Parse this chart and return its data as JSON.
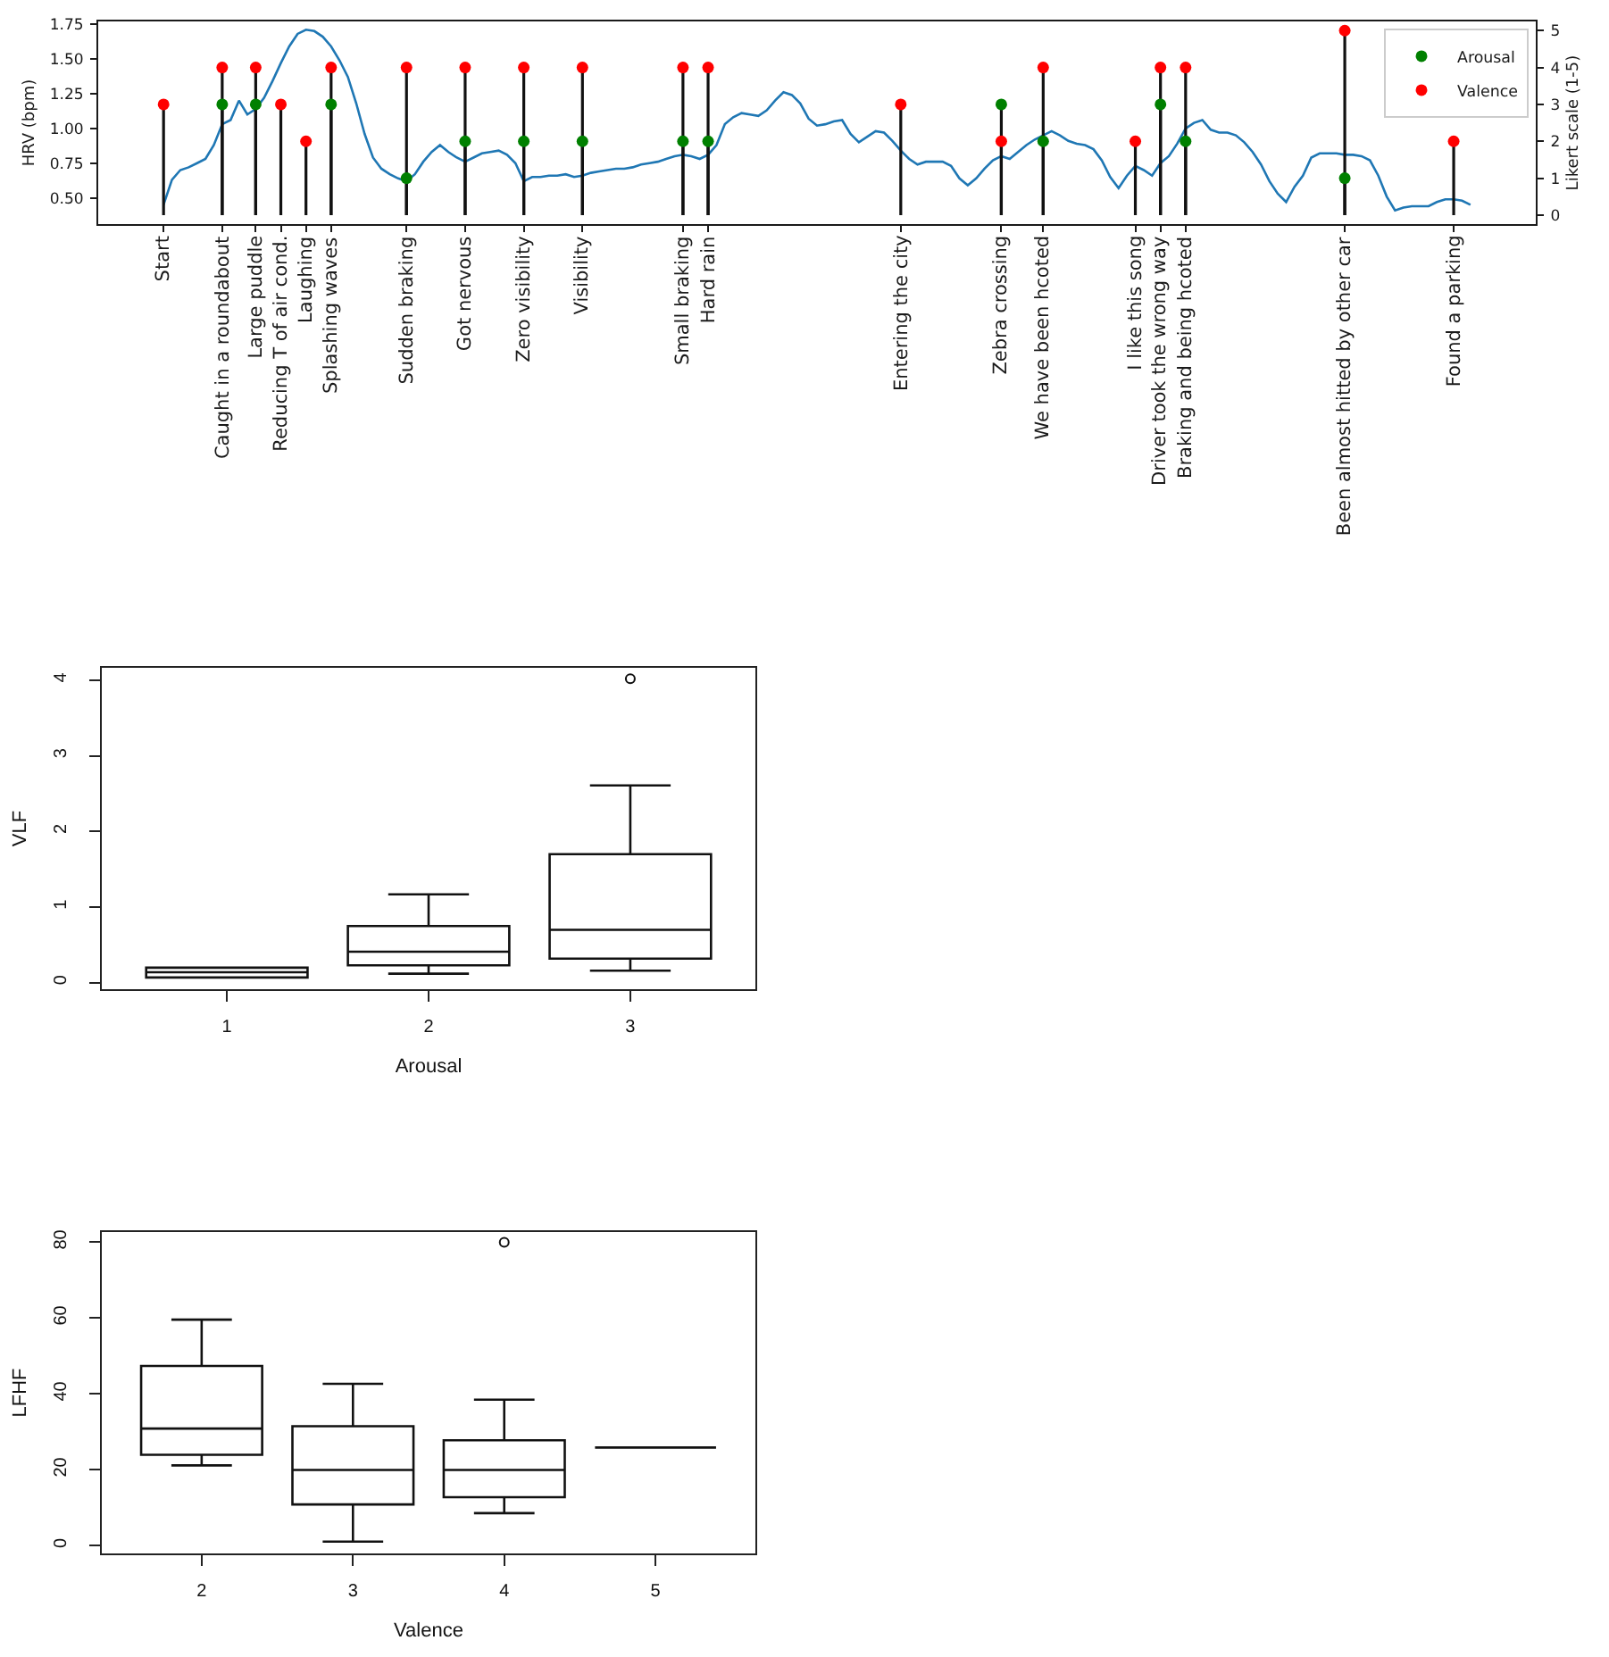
{
  "chart_data": [
    {
      "type": "line",
      "categories": [
        "Start",
        null,
        null,
        null,
        null,
        null,
        null,
        "Caught in a roundabout",
        null,
        null,
        null,
        "Large puddle",
        null,
        null,
        "Reducing T of air cond.",
        null,
        null,
        "Laughing",
        null,
        null,
        "Splashing waves",
        null,
        null,
        null,
        null,
        null,
        null,
        null,
        null,
        "Sudden braking",
        null,
        null,
        null,
        null,
        null,
        null,
        "Got nervous",
        null,
        null,
        null,
        null,
        null,
        null,
        "Zero visibility",
        null,
        null,
        null,
        null,
        null,
        null,
        "Visibility",
        null,
        null,
        null,
        null,
        null,
        null,
        null,
        null,
        null,
        null,
        null,
        "Small braking",
        null,
        null,
        "Hard rain",
        null,
        null,
        null,
        null,
        null,
        null,
        null,
        null,
        null,
        null,
        null,
        null,
        null,
        null,
        null,
        null,
        null,
        null,
        null,
        null,
        null,
        null,
        "Entering the city",
        null,
        null,
        null,
        null,
        null,
        null,
        null,
        null,
        null,
        null,
        null,
        "Zebra crossing",
        null,
        null,
        null,
        null,
        "We have been hcoted",
        null,
        null,
        null,
        null,
        null,
        null,
        null,
        null,
        null,
        null,
        "I like this song",
        null,
        null,
        "Driver took the wrong way",
        null,
        null,
        "Braking and being hcoted",
        null,
        null,
        null,
        null,
        null,
        null,
        null,
        null,
        null,
        null,
        null,
        null,
        null,
        null,
        null,
        null,
        null,
        null,
        "Been almost hitted by other car",
        null,
        null,
        null,
        null,
        null,
        null,
        null,
        null,
        null,
        null,
        null,
        null,
        "Found a parking",
        null,
        null
      ],
      "series": [
        {
          "type": "line",
          "color": "#1f77b4",
          "values": [
            0.45,
            0.63,
            0.7,
            0.72,
            0.75,
            0.78,
            0.88,
            1.03,
            1.06,
            1.2,
            1.1,
            1.14,
            1.22,
            1.34,
            1.47,
            1.59,
            1.68,
            1.71,
            1.7,
            1.66,
            1.59,
            1.49,
            1.37,
            1.18,
            0.96,
            0.79,
            0.71,
            0.67,
            0.64,
            0.62,
            0.67,
            0.76,
            0.83,
            0.88,
            0.83,
            0.79,
            0.76,
            0.79,
            0.82,
            0.83,
            0.84,
            0.81,
            0.75,
            0.62,
            0.65,
            0.65,
            0.66,
            0.66,
            0.67,
            0.65,
            0.66,
            0.68,
            0.69,
            0.7,
            0.71,
            0.71,
            0.72,
            0.74,
            0.75,
            0.76,
            0.78,
            0.8,
            0.81,
            0.8,
            0.78,
            0.81,
            0.88,
            1.03,
            1.08,
            1.11,
            1.1,
            1.09,
            1.13,
            1.2,
            1.26,
            1.24,
            1.18,
            1.07,
            1.02,
            1.03,
            1.05,
            1.06,
            0.96,
            0.9,
            0.94,
            0.98,
            0.97,
            0.91,
            0.84,
            0.78,
            0.74,
            0.76,
            0.76,
            0.76,
            0.73,
            0.64,
            0.59,
            0.64,
            0.71,
            0.77,
            0.8,
            0.78,
            0.83,
            0.88,
            0.92,
            0.95,
            0.98,
            0.95,
            0.91,
            0.89,
            0.88,
            0.85,
            0.77,
            0.65,
            0.57,
            0.66,
            0.73,
            0.7,
            0.66,
            0.75,
            0.8,
            0.89,
            1.0,
            1.04,
            1.06,
            0.99,
            0.97,
            0.97,
            0.95,
            0.9,
            0.83,
            0.74,
            0.62,
            0.53,
            0.47,
            0.58,
            0.66,
            0.79,
            0.82,
            0.82,
            0.82,
            0.81,
            0.81,
            0.8,
            0.77,
            0.66,
            0.51,
            0.41,
            0.43,
            0.44,
            0.44,
            0.44,
            0.47,
            0.49,
            0.49,
            0.48,
            0.45
          ]
        },
        {
          "name": "Arousal",
          "type": "lollipop",
          "axis": "y2",
          "color": "#008000",
          "values": [
            null,
            null,
            null,
            null,
            null,
            null,
            null,
            3,
            null,
            null,
            null,
            3,
            null,
            null,
            null,
            null,
            null,
            null,
            null,
            null,
            3,
            null,
            null,
            null,
            null,
            null,
            null,
            null,
            null,
            1,
            null,
            null,
            null,
            null,
            null,
            null,
            2,
            null,
            null,
            null,
            null,
            null,
            null,
            2,
            null,
            null,
            null,
            null,
            null,
            null,
            2,
            null,
            null,
            null,
            null,
            null,
            null,
            null,
            null,
            null,
            null,
            null,
            2,
            null,
            null,
            2,
            null,
            null,
            null,
            null,
            null,
            null,
            null,
            null,
            null,
            null,
            null,
            null,
            null,
            null,
            null,
            null,
            null,
            null,
            null,
            null,
            null,
            null,
            null,
            null,
            null,
            null,
            null,
            null,
            null,
            null,
            null,
            null,
            null,
            null,
            3,
            null,
            null,
            null,
            null,
            2,
            null,
            null,
            null,
            null,
            null,
            null,
            null,
            null,
            null,
            null,
            null,
            null,
            null,
            3,
            null,
            null,
            2,
            null,
            null,
            null,
            null,
            null,
            null,
            null,
            null,
            null,
            null,
            null,
            null,
            null,
            null,
            null,
            null,
            null,
            null,
            1,
            null,
            null,
            null,
            null,
            null,
            null,
            null,
            null,
            null,
            null,
            null,
            null,
            null,
            null,
            null
          ]
        },
        {
          "name": "Valence",
          "type": "lollipop",
          "axis": "y2",
          "color": "#ff0000",
          "values": [
            3,
            null,
            null,
            null,
            null,
            null,
            null,
            4,
            null,
            null,
            null,
            4,
            null,
            null,
            3,
            null,
            null,
            2,
            null,
            null,
            4,
            null,
            null,
            null,
            null,
            null,
            null,
            null,
            null,
            4,
            null,
            null,
            null,
            null,
            null,
            null,
            4,
            null,
            null,
            null,
            null,
            null,
            null,
            4,
            null,
            null,
            null,
            null,
            null,
            null,
            4,
            null,
            null,
            null,
            null,
            null,
            null,
            null,
            null,
            null,
            null,
            null,
            4,
            null,
            null,
            4,
            null,
            null,
            null,
            null,
            null,
            null,
            null,
            null,
            null,
            null,
            null,
            null,
            null,
            null,
            null,
            null,
            null,
            null,
            null,
            null,
            null,
            null,
            3,
            null,
            null,
            null,
            null,
            null,
            null,
            null,
            null,
            null,
            null,
            null,
            2,
            null,
            null,
            null,
            null,
            4,
            null,
            null,
            null,
            null,
            null,
            null,
            null,
            null,
            null,
            null,
            2,
            null,
            null,
            4,
            null,
            null,
            4,
            null,
            null,
            null,
            null,
            null,
            null,
            null,
            null,
            null,
            null,
            null,
            null,
            null,
            null,
            null,
            null,
            null,
            null,
            5,
            null,
            null,
            null,
            null,
            null,
            null,
            null,
            null,
            null,
            null,
            null,
            null,
            2,
            null,
            null
          ]
        }
      ],
      "ylabel": "HRV (bpm)",
      "y2label": "Likert scale (1-5)",
      "ylim": [
        0.31,
        1.77
      ],
      "yticks": [
        {
          "value": 0.5,
          "label": "0.50"
        },
        {
          "value": 0.75,
          "label": "0.75"
        },
        {
          "value": 1.0,
          "label": "1.00"
        },
        {
          "value": 1.25,
          "label": "1.25"
        },
        {
          "value": 1.5,
          "label": "1.50"
        },
        {
          "value": 1.75,
          "label": "1.75"
        }
      ],
      "y2lim": [
        -0.25,
        5.25
      ],
      "y2ticks": [
        0,
        1,
        2,
        3,
        4,
        5
      ],
      "legend": "top right"
    },
    {
      "type": "box",
      "categories": [
        "1",
        "2",
        "3"
      ],
      "boxes": [
        {
          "low": 0.07,
          "q1": 0.07,
          "median": 0.14,
          "q3": 0.2,
          "high": 0.2
        },
        {
          "low": 0.12,
          "q1": 0.23,
          "median": 0.41,
          "q3": 0.75,
          "high": 1.17
        },
        {
          "low": 0.16,
          "q1": 0.32,
          "median": 0.7,
          "q3": 1.7,
          "high": 2.61,
          "outliers": [
            4.02
          ]
        }
      ],
      "xlabel": "Arousal",
      "ylabel": "VLF",
      "ylim": [
        -0.09,
        4.17
      ],
      "yticks": [
        0,
        1,
        2,
        3,
        4
      ]
    },
    {
      "type": "box",
      "categories": [
        "2",
        "3",
        "4",
        "5"
      ],
      "boxes": [
        {
          "low": 21.2,
          "q1": 24,
          "median": 30.9,
          "q3": 47.4,
          "high": 59.6
        },
        {
          "low": 1.1,
          "q1": 10.9,
          "median": 20,
          "q3": 31.5,
          "high": 42.7
        },
        {
          "low": 8.6,
          "q1": 12.8,
          "median": 20,
          "q3": 27.8,
          "high": 38.5,
          "outliers": [
            80
          ]
        },
        {
          "low": 25.9,
          "q1": 25.9,
          "median": 25.9,
          "q3": 25.9,
          "high": 25.9
        }
      ],
      "xlabel": "Valence",
      "ylabel": "LFHF",
      "ylim": [
        -2.1,
        82.8
      ],
      "yticks": [
        0,
        20,
        40,
        60,
        80
      ]
    }
  ]
}
